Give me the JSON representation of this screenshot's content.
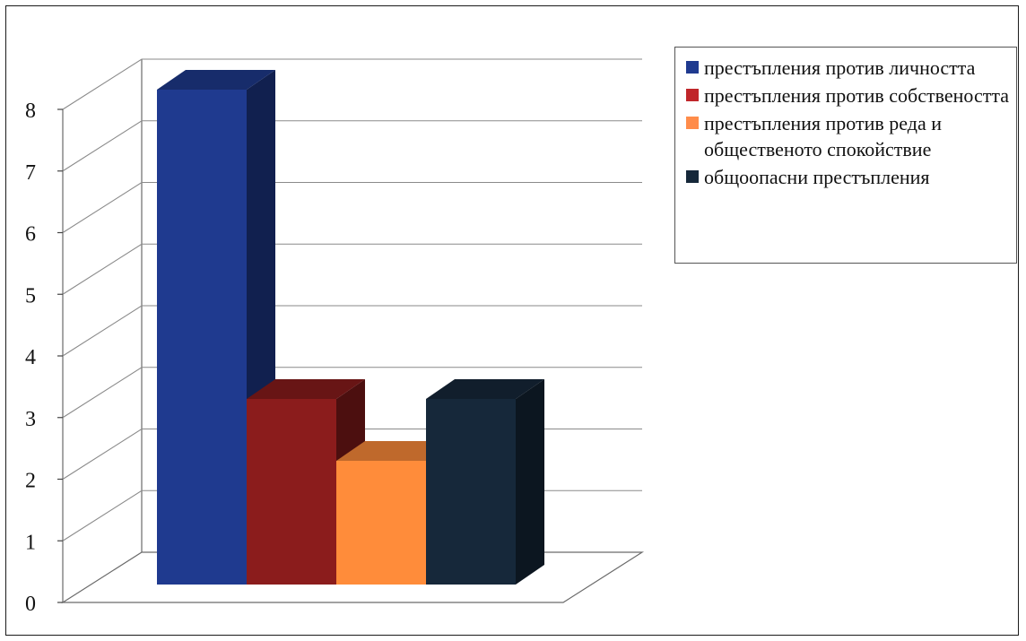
{
  "chart_data": {
    "type": "bar",
    "title": "",
    "xlabel": "",
    "ylabel": "",
    "ylim": [
      0,
      8
    ],
    "yticks": [
      0,
      1,
      2,
      3,
      4,
      5,
      6,
      7,
      8
    ],
    "grid": true,
    "three_d": true,
    "legend_position": "top-right",
    "series": [
      {
        "name": "престъпления против личността",
        "value": 8,
        "color": "#1f3a8f"
      },
      {
        "name": "престъпления против собствеността",
        "value": 3,
        "color": "#8b1c1c"
      },
      {
        "name": "престъпления против реда и общественото спокойствие",
        "value": 2,
        "color": "#ff8c3a"
      },
      {
        "name": "общоопасни престъпления",
        "value": 3,
        "color": "#16283a"
      }
    ]
  },
  "legend": {
    "items": [
      {
        "label": "престъпления против личността",
        "color": "#1f3a8f"
      },
      {
        "label": "престъпления против собствеността",
        "color": "#c0262a"
      },
      {
        "label": "престъпления против реда и общественото спокойствие",
        "color": "#ff8c4a"
      },
      {
        "label": "общоопасни престъпления",
        "color": "#16283a"
      }
    ]
  }
}
